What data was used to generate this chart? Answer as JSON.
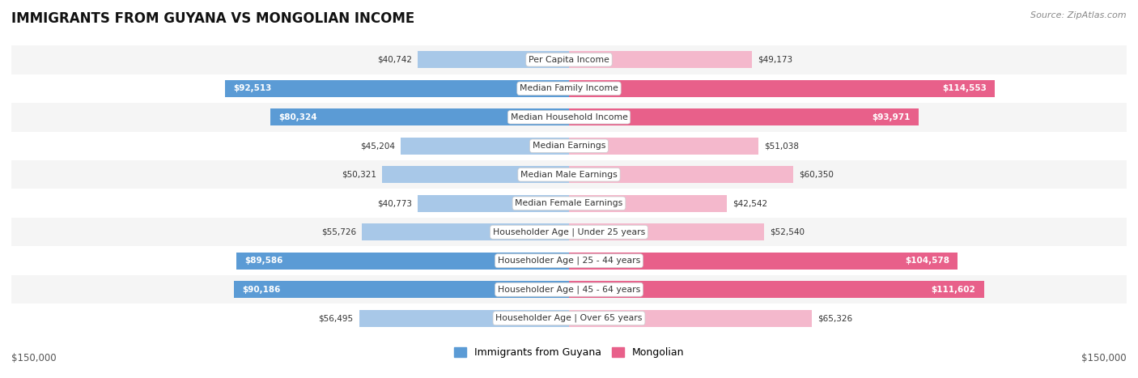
{
  "title": "IMMIGRANTS FROM GUYANA VS MONGOLIAN INCOME",
  "source": "Source: ZipAtlas.com",
  "categories": [
    "Per Capita Income",
    "Median Family Income",
    "Median Household Income",
    "Median Earnings",
    "Median Male Earnings",
    "Median Female Earnings",
    "Householder Age | Under 25 years",
    "Householder Age | 25 - 44 years",
    "Householder Age | 45 - 64 years",
    "Householder Age | Over 65 years"
  ],
  "guyana_values": [
    40742,
    92513,
    80324,
    45204,
    50321,
    40773,
    55726,
    89586,
    90186,
    56495
  ],
  "mongolian_values": [
    49173,
    114553,
    93971,
    51038,
    60350,
    42542,
    52540,
    104578,
    111602,
    65326
  ],
  "guyana_labels": [
    "$40,742",
    "$92,513",
    "$80,324",
    "$45,204",
    "$50,321",
    "$40,773",
    "$55,726",
    "$89,586",
    "$90,186",
    "$56,495"
  ],
  "mongolian_labels": [
    "$49,173",
    "$114,553",
    "$93,971",
    "$51,038",
    "$60,350",
    "$42,542",
    "$52,540",
    "$104,578",
    "$111,602",
    "$65,326"
  ],
  "guyana_color_light": "#a8c8e8",
  "guyana_color_dark": "#5b9bd5",
  "mongolian_color_light": "#f4b8cc",
  "mongolian_color_dark": "#e8608a",
  "max_val": 150000,
  "row_colors": [
    "#f5f5f5",
    "#ffffff",
    "#f5f5f5",
    "#ffffff",
    "#f5f5f5",
    "#ffffff",
    "#f5f5f5",
    "#ffffff",
    "#f5f5f5",
    "#ffffff"
  ],
  "guyana_large_threshold": 70000,
  "mongolian_large_threshold": 70000,
  "legend_guyana": "Immigrants from Guyana",
  "legend_mongolian": "Mongolian",
  "xaxis_label_left": "$150,000",
  "xaxis_label_right": "$150,000"
}
